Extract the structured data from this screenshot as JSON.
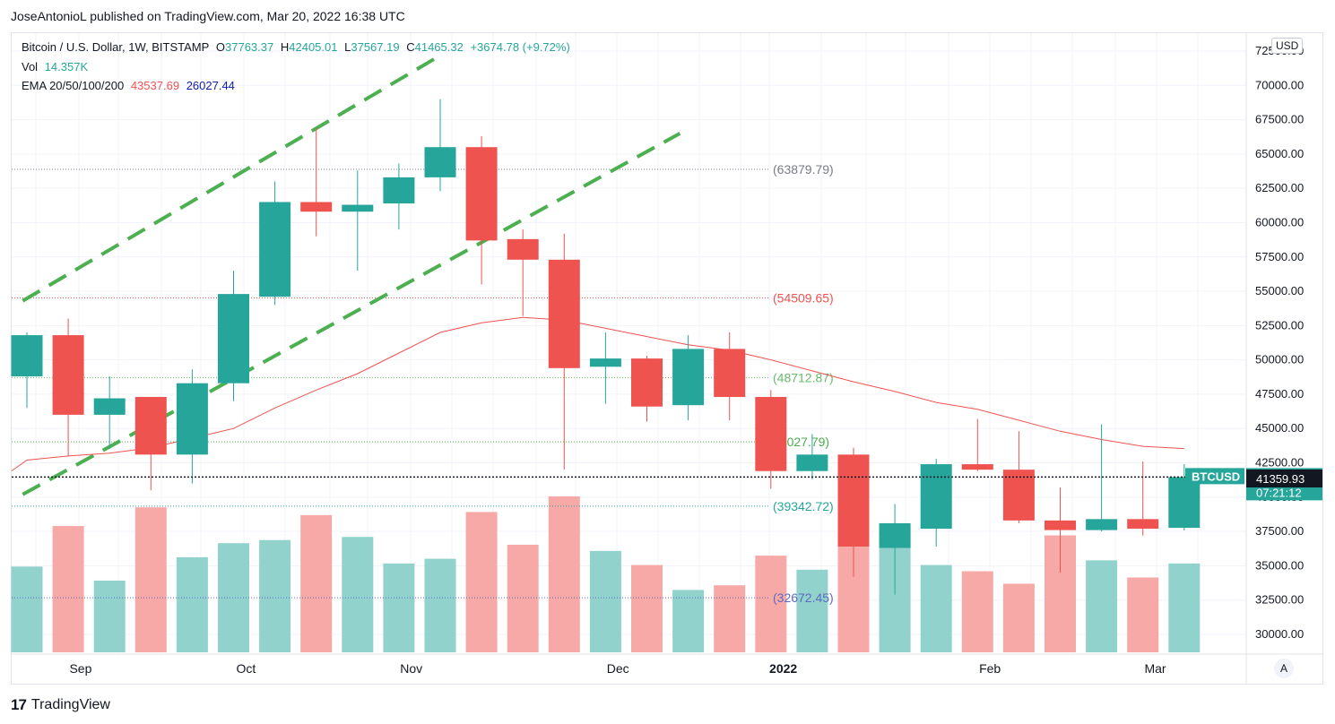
{
  "header": {
    "publisher_line": "JoseAntonioL published on TradingView.com, Mar 20, 2022 16:38 UTC"
  },
  "legend": {
    "symbol": "Bitcoin / U.S. Dollar, 1W, BITSTAMP",
    "o_label": "O",
    "o_value": "37763.37",
    "h_label": "H",
    "h_value": "42405.01",
    "l_label": "L",
    "l_value": "37567.19",
    "c_label": "C",
    "c_value": "41465.32",
    "change": "+3674.78 (+9.72%)",
    "vol_label": "Vol",
    "vol_value": "14.357K",
    "ema_label": "EMA 20/50/100/200",
    "ema_value1": "43537.69",
    "ema_value2": "26027.44"
  },
  "currency": "USD",
  "auto_button": "A",
  "brand": {
    "logo": "17",
    "name": "TradingView"
  },
  "colors": {
    "up": "#26a69a",
    "down": "#ef5350",
    "up_vol": "#92d2cc",
    "down_vol": "#f7a9a7",
    "ema": "#ef5350",
    "channel": "#4caf50"
  },
  "chart_data": {
    "type": "candlestick",
    "symbol": "BTCUSD",
    "timeframe": "1W",
    "y_ticks": [
      30000,
      32500,
      35000,
      37500,
      40000,
      42500,
      45000,
      47500,
      50000,
      52500,
      55000,
      57500,
      60000,
      62500,
      65000,
      67500,
      70000,
      72500
    ],
    "y_tick_labels": [
      "30000.00",
      "32500.00",
      "35000.00",
      "37500.00",
      "40000.00",
      "42500.00",
      "45000.00",
      "47500.00",
      "50000.00",
      "52500.00",
      "55000.00",
      "57500.00",
      "60000.00",
      "62500.00",
      "65000.00",
      "67500.00",
      "70000.00",
      "72500.00"
    ],
    "x_labels": [
      {
        "text": "Sep",
        "index": 1.3
      },
      {
        "text": "Oct",
        "index": 5.3
      },
      {
        "text": "Nov",
        "index": 9.3
      },
      {
        "text": "Dec",
        "index": 14.3
      },
      {
        "text": "2022",
        "index": 18.3,
        "bold": true
      },
      {
        "text": "Feb",
        "index": 23.3
      },
      {
        "text": "Mar",
        "index": 27.3
      }
    ],
    "candles": [
      {
        "o": 48800,
        "h": 52000,
        "l": 46500,
        "c": 51800,
        "v": 0.55
      },
      {
        "o": 51800,
        "h": 53000,
        "l": 43000,
        "c": 46000,
        "v": 0.81
      },
      {
        "o": 46000,
        "h": 48800,
        "l": 43500,
        "c": 47200,
        "v": 0.46
      },
      {
        "o": 47300,
        "h": 47300,
        "l": 40500,
        "c": 43100,
        "v": 0.93
      },
      {
        "o": 43100,
        "h": 49300,
        "l": 41000,
        "c": 48300,
        "v": 0.61
      },
      {
        "o": 48300,
        "h": 56500,
        "l": 47000,
        "c": 54800,
        "v": 0.7
      },
      {
        "o": 54600,
        "h": 63000,
        "l": 54000,
        "c": 61500,
        "v": 0.72
      },
      {
        "o": 61500,
        "h": 66900,
        "l": 59000,
        "c": 60800,
        "v": 0.88
      },
      {
        "o": 60800,
        "h": 63800,
        "l": 56500,
        "c": 61300,
        "v": 0.74
      },
      {
        "o": 61400,
        "h": 64300,
        "l": 59500,
        "c": 63300,
        "v": 0.57
      },
      {
        "o": 63300,
        "h": 69000,
        "l": 62300,
        "c": 65500,
        "v": 0.6
      },
      {
        "o": 65500,
        "h": 66300,
        "l": 55500,
        "c": 58700,
        "v": 0.9
      },
      {
        "o": 58800,
        "h": 59500,
        "l": 53200,
        "c": 57300,
        "v": 0.69
      },
      {
        "o": 57300,
        "h": 59200,
        "l": 42000,
        "c": 49400,
        "v": 1.0
      },
      {
        "o": 49500,
        "h": 52000,
        "l": 46800,
        "c": 50100,
        "v": 0.65
      },
      {
        "o": 50100,
        "h": 50300,
        "l": 45500,
        "c": 46600,
        "v": 0.56
      },
      {
        "o": 46700,
        "h": 51800,
        "l": 45600,
        "c": 50800,
        "v": 0.4
      },
      {
        "o": 50800,
        "h": 52000,
        "l": 45600,
        "c": 47300,
        "v": 0.43
      },
      {
        "o": 47300,
        "h": 47800,
        "l": 40600,
        "c": 41900,
        "v": 0.62
      },
      {
        "o": 41900,
        "h": 44600,
        "l": 41300,
        "c": 43100,
        "v": 0.53
      },
      {
        "o": 43100,
        "h": 43600,
        "l": 34200,
        "c": 36400,
        "v": 0.81
      },
      {
        "o": 36300,
        "h": 39500,
        "l": 32900,
        "c": 38100,
        "v": 0.81
      },
      {
        "o": 37700,
        "h": 42800,
        "l": 36400,
        "c": 42400,
        "v": 0.56
      },
      {
        "o": 42400,
        "h": 45700,
        "l": 41900,
        "c": 42000,
        "v": 0.52
      },
      {
        "o": 42000,
        "h": 44800,
        "l": 38100,
        "c": 38300,
        "v": 0.44
      },
      {
        "o": 38300,
        "h": 40700,
        "l": 34500,
        "c": 37600,
        "v": 0.75
      },
      {
        "o": 37600,
        "h": 45300,
        "l": 37500,
        "c": 38400,
        "v": 0.59
      },
      {
        "o": 38400,
        "h": 42600,
        "l": 37200,
        "c": 37700,
        "v": 0.48
      },
      {
        "o": 37763.37,
        "h": 42405.01,
        "l": 37567.19,
        "c": 41465.32,
        "v": 0.57
      }
    ],
    "ema": [
      42700,
      43000,
      43200,
      43600,
      44300,
      45000,
      46500,
      47800,
      49000,
      50500,
      52000,
      52700,
      53100,
      52900,
      52300,
      51700,
      51100,
      50700,
      50000,
      49200,
      48400,
      47700,
      46900,
      46400,
      45600,
      44800,
      44200,
      43700,
      43537.69
    ],
    "price_lines": [
      {
        "label": "(63879.79)",
        "value": 63879.79,
        "color": "#787b86"
      },
      {
        "label": "(54509.65)",
        "value": 54509.65,
        "color": "#ef5350"
      },
      {
        "label": "(48712.87)",
        "value": 48712.87,
        "color": "#66bb6a"
      },
      {
        "label": "44027.79)",
        "value": 44027.79,
        "color": "#4caf50"
      },
      {
        "label": "(39342.72)",
        "value": 39342.72,
        "color": "#26a69a"
      },
      {
        "label": "(32672.45)",
        "value": 32672.45,
        "color": "#5c6bc0"
      }
    ],
    "channel_lines": [
      {
        "x1": -0.1,
        "y1": 54300,
        "x2": 9.9,
        "y2": 72000
      },
      {
        "x1": -0.1,
        "y1": 40200,
        "x2": 15.8,
        "y2": 66500
      }
    ],
    "current_price": {
      "symbol": "BTCUSD",
      "value": 41465.32,
      "label": "41465.32",
      "countdown": "07:21:12"
    },
    "crosshair_price": {
      "value": 41359.93,
      "label": "41359.93"
    }
  }
}
